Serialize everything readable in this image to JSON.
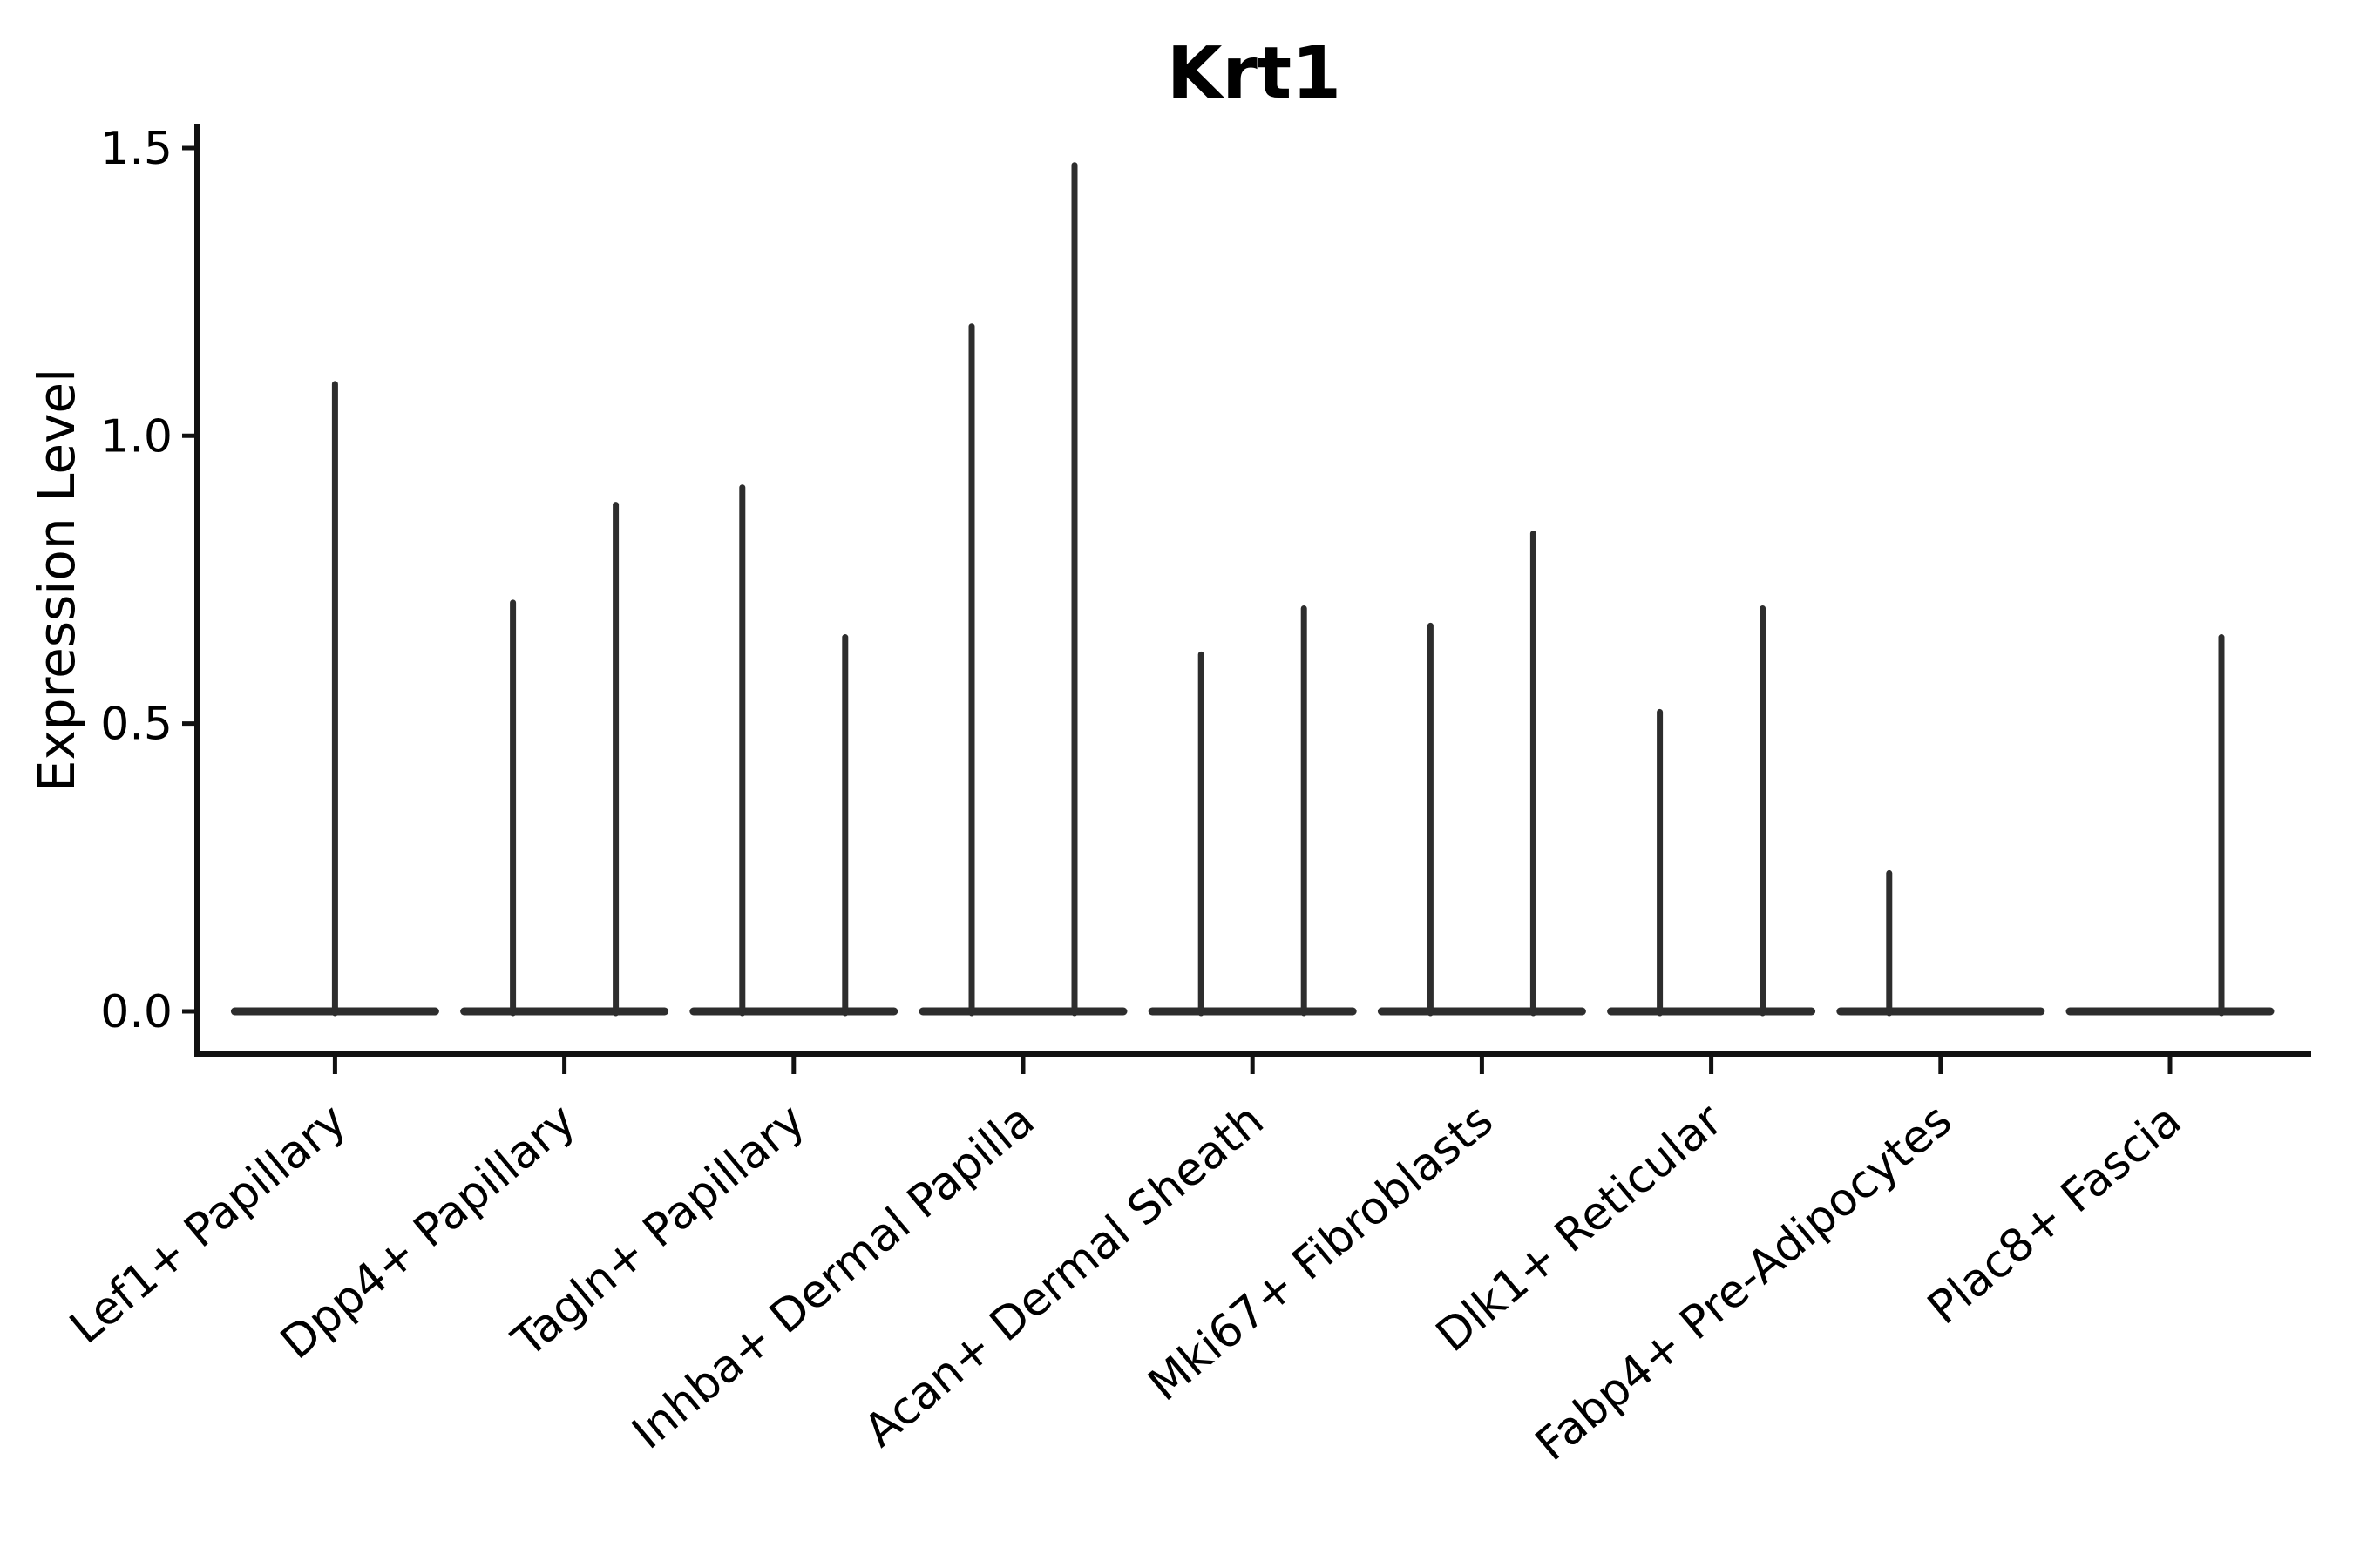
{
  "figure": {
    "background": "#ffffff"
  },
  "chart_data": {
    "type": "violin",
    "title": "Krt1",
    "ylabel": "Expression Level",
    "xlabel": "",
    "grid": false,
    "legend_position": "none",
    "ytick_labels": [
      "0.0",
      "0.5",
      "1.0",
      "1.5"
    ],
    "ytick_values": [
      0.0,
      0.5,
      1.0,
      1.5
    ],
    "ylim": [
      -0.074,
      1.542
    ],
    "baseline_value": 0.0,
    "categories": [
      "Lef1+ Papillary",
      "Dpp4+ Papillary",
      "Tagln+ Papillary",
      "Inhba+ Dermal Papilla",
      "Acan+ Dermal Sheath",
      "Mki67+ Fibroblasts",
      "Dlk1+ Reticular",
      "Fabp4+ Pre-Adipocytes",
      "Plac8+ Fascia"
    ],
    "violins": [
      {
        "category": "Lef1+ Papillary",
        "spikes": [
          {
            "position": "center",
            "max": 1.09
          }
        ]
      },
      {
        "category": "Dpp4+ Papillary",
        "spikes": [
          {
            "position": "left",
            "max": 0.71
          },
          {
            "position": "right",
            "max": 0.88
          }
        ]
      },
      {
        "category": "Tagln+ Papillary",
        "spikes": [
          {
            "position": "left",
            "max": 0.91
          },
          {
            "position": "right",
            "max": 0.65
          }
        ]
      },
      {
        "category": "Inhba+ Dermal Papilla",
        "spikes": [
          {
            "position": "left",
            "max": 1.19
          },
          {
            "position": "right",
            "max": 1.47
          }
        ]
      },
      {
        "category": "Acan+ Dermal Sheath",
        "spikes": [
          {
            "position": "left",
            "max": 0.62
          },
          {
            "position": "right",
            "max": 0.7
          }
        ]
      },
      {
        "category": "Mki67+ Fibroblasts",
        "spikes": [
          {
            "position": "left",
            "max": 0.67
          },
          {
            "position": "right",
            "max": 0.83
          }
        ]
      },
      {
        "category": "Dlk1+ Reticular",
        "spikes": [
          {
            "position": "left",
            "max": 0.52
          },
          {
            "position": "right",
            "max": 0.7
          }
        ]
      },
      {
        "category": "Fabp4+ Pre-Adipocytes",
        "spikes": [
          {
            "position": "left",
            "max": 0.24
          }
        ]
      },
      {
        "category": "Plac8+ Fascia",
        "spikes": [
          {
            "position": "right",
            "max": 0.65
          }
        ]
      }
    ],
    "colors": {
      "violin": "#2d2d2d",
      "axis": "#111111",
      "text": "#000000",
      "background": "#ffffff"
    }
  }
}
